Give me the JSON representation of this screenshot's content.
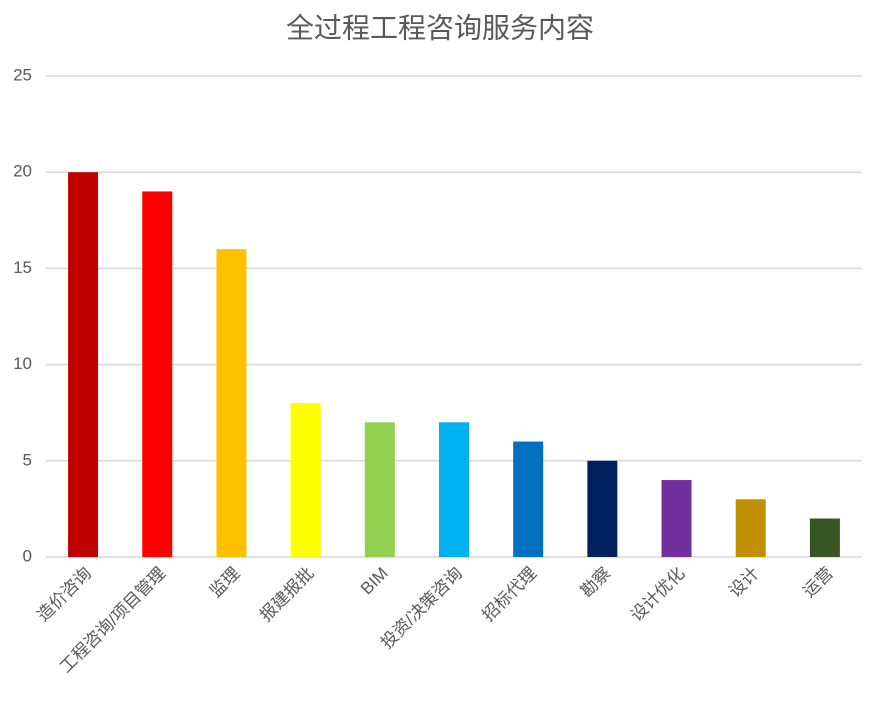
{
  "chart_data": {
    "type": "bar",
    "title": "全过程工程咨询服务内容",
    "categories": [
      "造价咨询",
      "工程咨询/项目管理",
      "监理",
      "报建报批",
      "BIM",
      "投资/决策咨询",
      "招标代理",
      "勘察",
      "设计优化",
      "设计",
      "运营"
    ],
    "values": [
      20,
      19,
      16,
      8,
      7,
      7,
      6,
      5,
      4,
      3,
      2
    ],
    "colors": [
      "#c00000",
      "#ff0000",
      "#ffc000",
      "#ffff00",
      "#92d050",
      "#00b0f0",
      "#0070c0",
      "#002060",
      "#7030a0",
      "#bf9000",
      "#375623"
    ],
    "ylim": [
      0,
      25
    ],
    "yticks": [
      0,
      5,
      10,
      15,
      20,
      25
    ],
    "grid": true
  }
}
